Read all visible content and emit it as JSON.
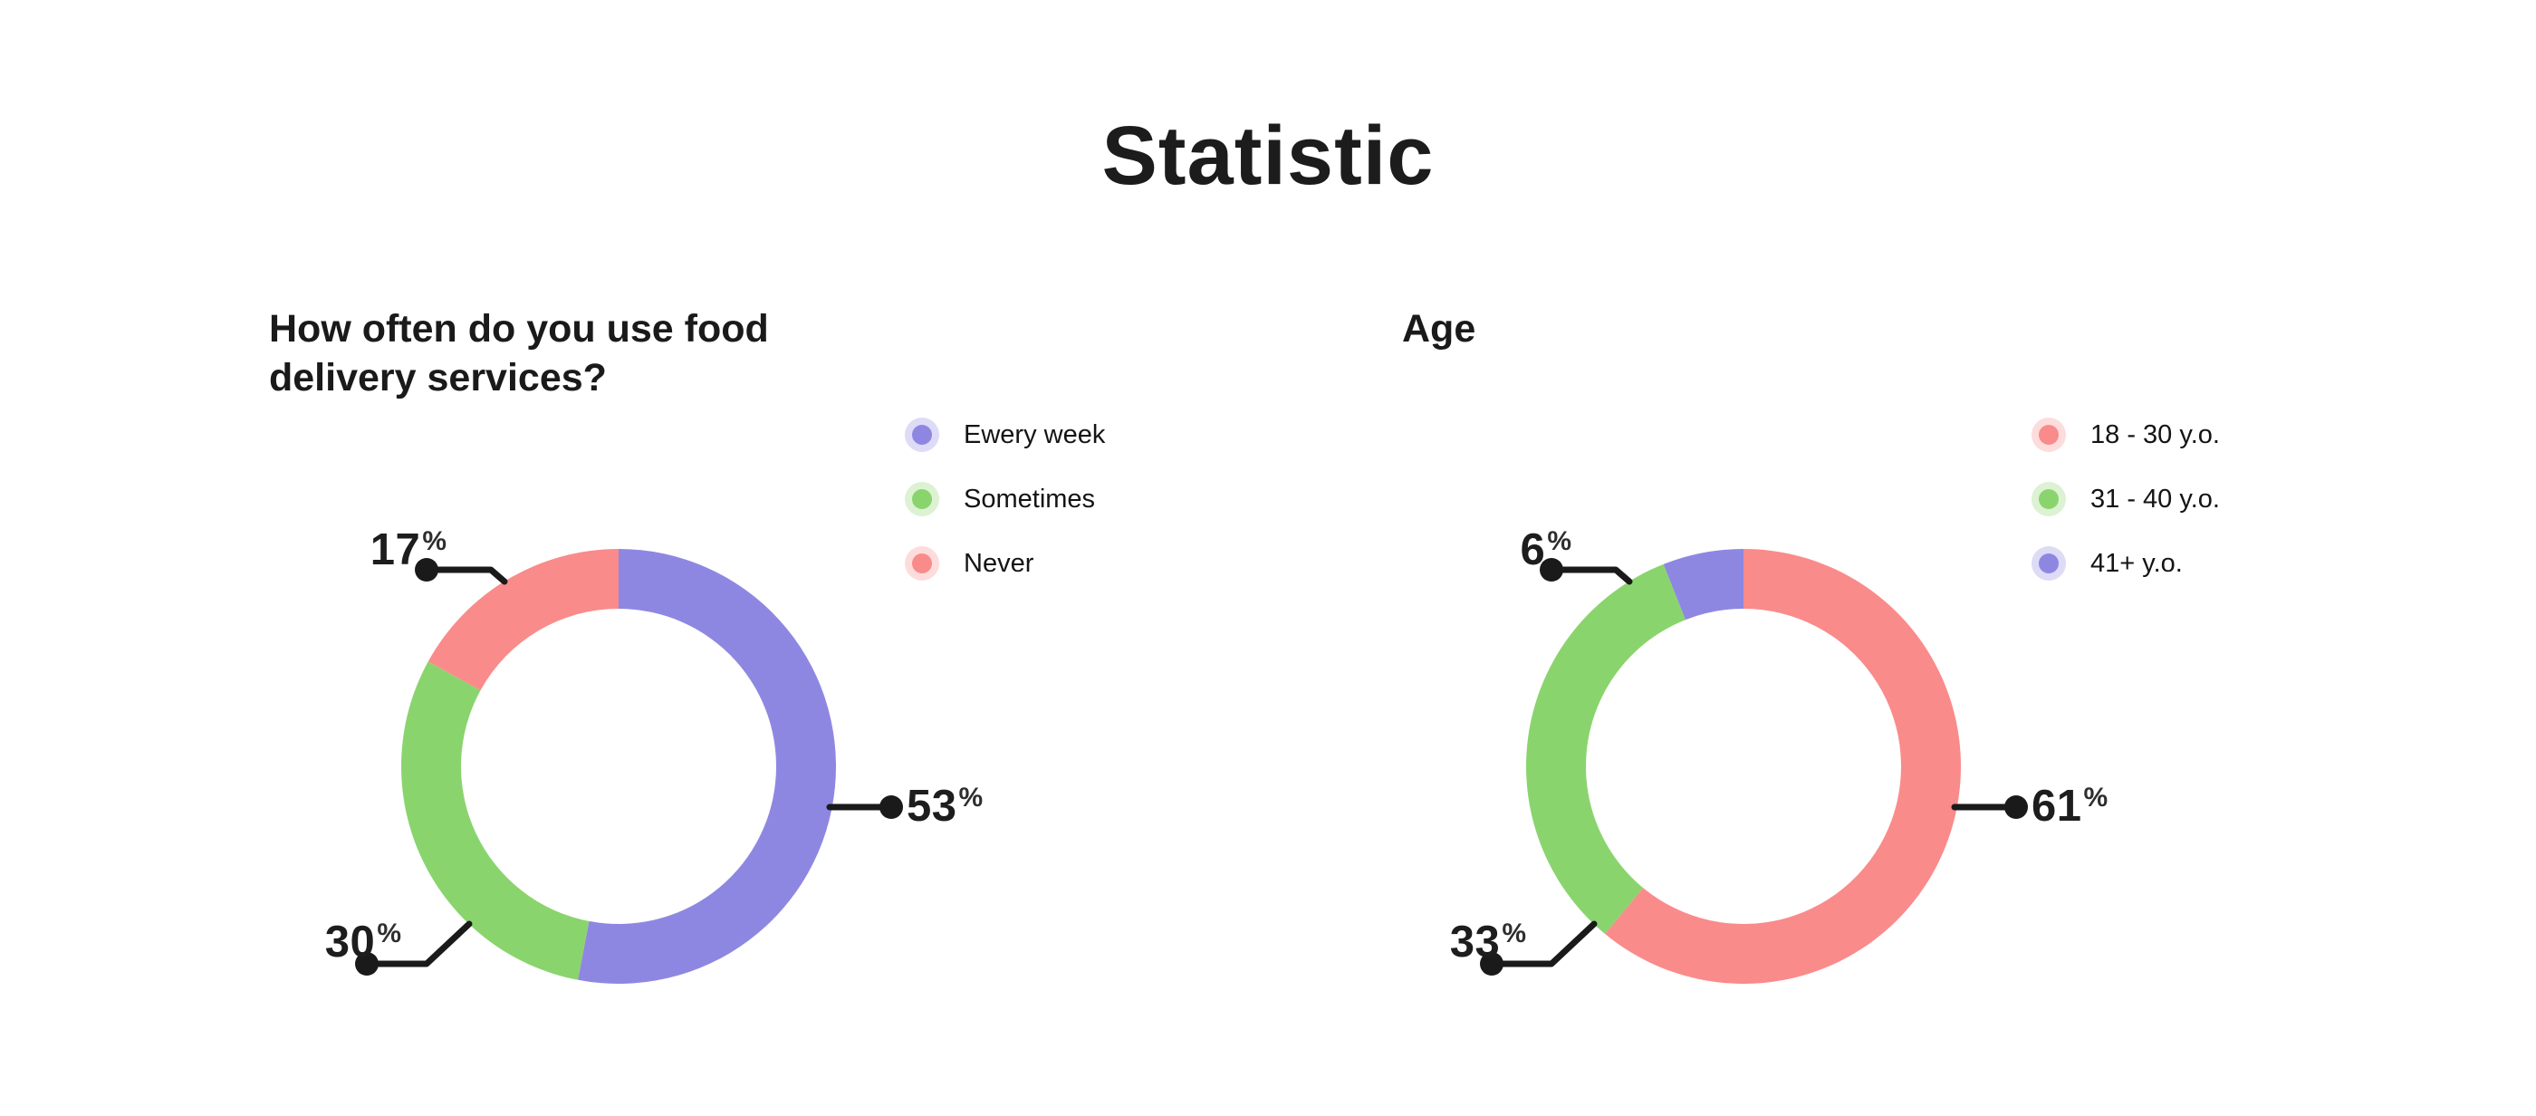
{
  "page_title": "Statistic",
  "unit": "%",
  "colors": {
    "purple": "#8E87E2",
    "green": "#8AD46E",
    "red": "#FA8B8B",
    "text_dark": "#1D1D1D",
    "connector": "#1A1A1A",
    "background": "#FFFFFF"
  },
  "chart_data": [
    {
      "type": "pie",
      "variant": "donut",
      "title": "How often do you use food\ndelivery services?",
      "legend_position": "right",
      "start_angle_deg": 0,
      "direction": "clockwise",
      "unit": "%",
      "slices": [
        {
          "label": "Ewery week",
          "value": 53,
          "color": "#8E87E2",
          "callout": "right"
        },
        {
          "label": "Sometimes",
          "value": 30,
          "color": "#8AD46E",
          "callout": "bottom-left"
        },
        {
          "label": "Never",
          "value": 17,
          "color": "#FA8B8B",
          "callout": "top-left"
        }
      ]
    },
    {
      "type": "pie",
      "variant": "donut",
      "title": "Age",
      "legend_position": "right",
      "start_angle_deg": 0,
      "direction": "clockwise",
      "unit": "%",
      "slices": [
        {
          "label": "18 - 30 y.o.",
          "value": 61,
          "color": "#FA8B8B",
          "callout": "right"
        },
        {
          "label": "31 - 40 y.o.",
          "value": 33,
          "color": "#8AD46E",
          "callout": "bottom-left"
        },
        {
          "label": "41+ y.o.",
          "value": 6,
          "color": "#8E87E2",
          "callout": "top-left"
        }
      ]
    }
  ]
}
